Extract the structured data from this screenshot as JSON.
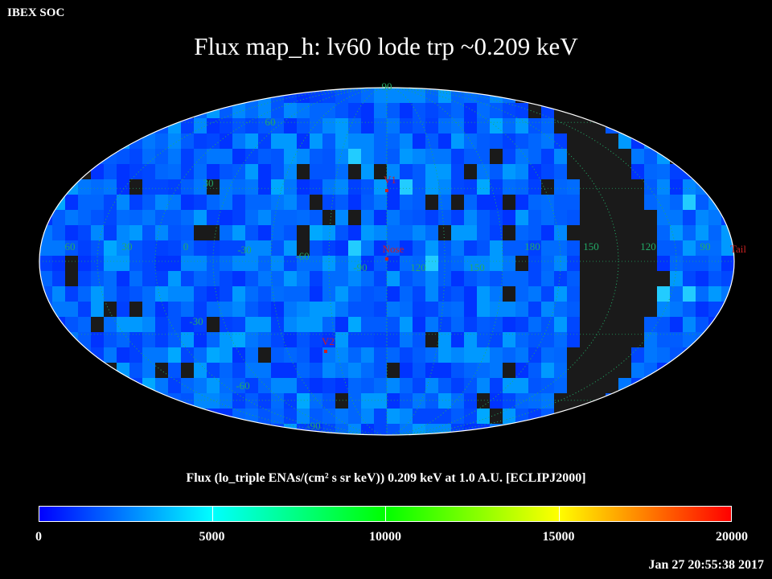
{
  "corner_label": "IBEX SOC",
  "title": "Flux   map_h: lv60 lode trp ~0.209 keV",
  "colorbar_title": "Flux (lo_triple ENAs/(cm² s sr keV))  0.209 keV at 1.0 A.U. [ECLIPJ2000]",
  "timestamp": "Jan 27 20:55:38 2017",
  "colors": {
    "background": "#000000",
    "grid": "#22aa66",
    "marker": "#cc2222",
    "nodata": "#1a1a1a",
    "colorbar_stops": [
      "#0000ff",
      "#00ffff",
      "#00ff00",
      "#ffff00",
      "#ff0000"
    ]
  },
  "chart_data": {
    "type": "heatmap",
    "projection": "mollweide",
    "frame": "ECLIPJ2000",
    "energy": "0.209 keV",
    "colorscale": {
      "min": 0,
      "max": 20000,
      "ticks": [
        "0",
        "5000",
        "10000",
        "15000",
        "20000"
      ]
    },
    "longitude_labels": [
      "60",
      "30",
      "0",
      "-30",
      "-60",
      "-90",
      "120",
      "150",
      "180",
      "150",
      "120",
      "90"
    ],
    "latitude_labels": [
      "90",
      "60",
      "30",
      "-30",
      "-60",
      "-90"
    ],
    "markers": [
      {
        "label": "V1"
      },
      {
        "label": "Nose"
      },
      {
        "label": "V2"
      },
      {
        "label": "Tail"
      }
    ],
    "value_range_observed": [
      0,
      6000
    ],
    "nodata_band": "ecliptic longitude ~185–205 (black crescent)"
  }
}
